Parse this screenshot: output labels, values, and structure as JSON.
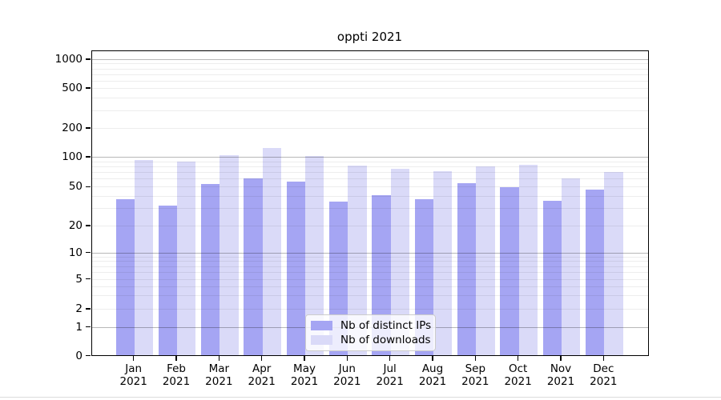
{
  "title": "oppti 2021",
  "x_axis": {
    "year": "2021",
    "months": [
      "Jan",
      "Feb",
      "Mar",
      "Apr",
      "May",
      "Jun",
      "Jul",
      "Aug",
      "Sep",
      "Oct",
      "Nov",
      "Dec"
    ]
  },
  "y_axis": {
    "ticks": [
      0,
      1,
      2,
      5,
      10,
      20,
      50,
      100,
      200,
      500,
      1000
    ]
  },
  "legend": {
    "items": [
      {
        "label": "Nb of distinct IPs",
        "color_key": "ips"
      },
      {
        "label": "Nb of downloads",
        "color_key": "downloads"
      }
    ]
  },
  "colors": {
    "ips": "#a5a5f3",
    "downloads": "#dadaf8",
    "axis": "#000000",
    "grid_major": "rgba(0,0,0,0.28)",
    "grid_minor": "rgba(0,0,0,0.07)"
  },
  "chart_data": {
    "type": "bar",
    "title": "oppti 2021",
    "categories": [
      "Jan 2021",
      "Feb 2021",
      "Mar 2021",
      "Apr 2021",
      "May 2021",
      "Jun 2021",
      "Jul 2021",
      "Aug 2021",
      "Sep 2021",
      "Oct 2021",
      "Nov 2021",
      "Dec 2021"
    ],
    "series": [
      {
        "name": "Nb of distinct IPs",
        "color": "#a5a5f3",
        "values": [
          37,
          32,
          53,
          61,
          56,
          35,
          41,
          37,
          54,
          49,
          36,
          47
        ]
      },
      {
        "name": "Nb of downloads",
        "color": "#dadaf8",
        "values": [
          92,
          90,
          104,
          123,
          101,
          82,
          76,
          72,
          80,
          83,
          61,
          70
        ]
      }
    ],
    "xlabel": "",
    "ylabel": "",
    "y_scale": "log-with-zero",
    "y_ticks": [
      0,
      1,
      2,
      5,
      10,
      20,
      50,
      100,
      200,
      500,
      1000
    ],
    "ylim": [
      0,
      1200
    ],
    "grid": true,
    "legend_position": "lower center"
  }
}
